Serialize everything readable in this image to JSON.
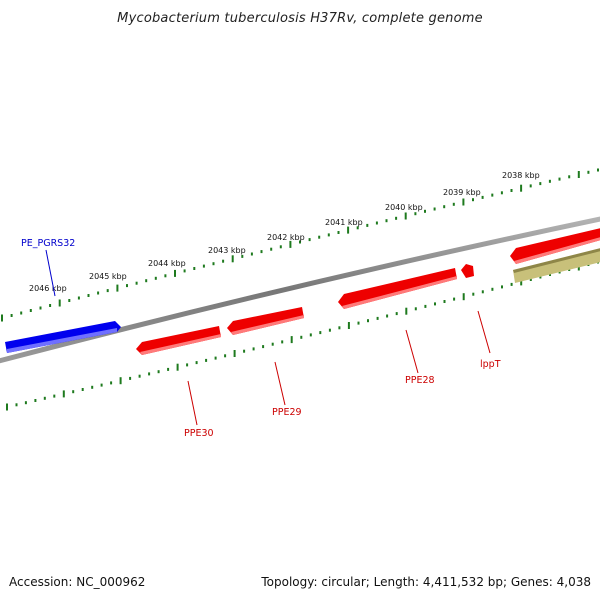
{
  "header": {
    "title": "Mycobacterium tuberculosis H37Rv, complete genome"
  },
  "footer": {
    "accession": "Accession: NC_000962",
    "topology": "Topology: circular; Length: 4,411,532 bp; Genes: 4,038"
  },
  "colors": {
    "background": "#ffffff",
    "backbone": "#8a8a8a",
    "ruler_ticks": "#1e7a1e",
    "forward_gene": "#0000ee",
    "reverse_gene": "#ee0000",
    "other_feature": "#c8c07a"
  },
  "scale": {
    "unit": "kbp",
    "tick_labels": [
      "2038 kbp",
      "2039 kbp",
      "2040 kbp",
      "2041 kbp",
      "2042 kbp",
      "2043 kbp",
      "2044 kbp",
      "2045 kbp",
      "2046 kbp"
    ]
  },
  "genes": [
    {
      "name": "PE_PGRS32",
      "strand": "forward",
      "color": "#0000ee"
    },
    {
      "name": "PPE30",
      "strand": "reverse",
      "color": "#ee0000"
    },
    {
      "name": "PPE29",
      "strand": "reverse",
      "color": "#ee0000"
    },
    {
      "name": "PPE28",
      "strand": "reverse",
      "color": "#ee0000"
    },
    {
      "name": "lppT",
      "strand": "reverse",
      "color": "#ee0000"
    }
  ]
}
